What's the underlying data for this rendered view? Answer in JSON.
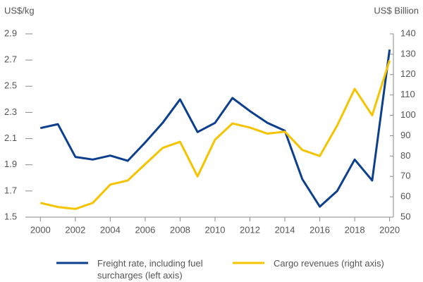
{
  "chart_data": {
    "type": "line",
    "y_label": "US$/kg",
    "y2_label": "US$ Billion",
    "x": [
      2000,
      2001,
      2002,
      2003,
      2004,
      2005,
      2006,
      2007,
      2008,
      2009,
      2010,
      2011,
      2012,
      2013,
      2014,
      2015,
      2016,
      2017,
      2018,
      2019,
      2020
    ],
    "xlim": [
      1999.3,
      2020.5
    ],
    "xticks": [
      2000,
      2002,
      2004,
      2006,
      2008,
      2010,
      2012,
      2014,
      2016,
      2018,
      2020
    ],
    "ylim": [
      1.5,
      2.9
    ],
    "yticks": [
      1.5,
      1.7,
      1.9,
      2.1,
      2.3,
      2.5,
      2.7,
      2.9
    ],
    "y2lim": [
      50,
      140
    ],
    "y2ticks": [
      50,
      60,
      70,
      80,
      90,
      100,
      110,
      120,
      130,
      140
    ],
    "grid": false,
    "series": [
      {
        "name": "Freight rate, including fuel surcharges (left axis)",
        "color": "#0d3f8f",
        "values": [
          2.18,
          2.21,
          1.96,
          1.94,
          1.97,
          1.93,
          2.07,
          2.22,
          2.4,
          2.15,
          2.22,
          2.41,
          2.31,
          2.22,
          2.16,
          1.79,
          1.58,
          1.7,
          1.94,
          1.78,
          2.78
        ]
      },
      {
        "name": "Cargo revenues (right axis)",
        "color": "#f5c400",
        "axis": "y2",
        "values": [
          57,
          55,
          54,
          57,
          66,
          68,
          76,
          84,
          87,
          70,
          88,
          96,
          94,
          91,
          92,
          83,
          80,
          95,
          113,
          100,
          127
        ]
      }
    ]
  }
}
